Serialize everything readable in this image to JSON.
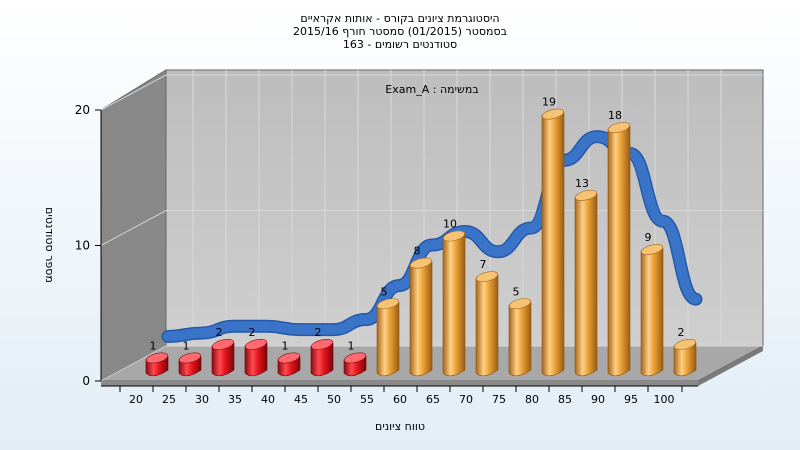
{
  "chart_data": {
    "type": "bar",
    "title_lines": [
      "היסטוגרמת ציונים בקורס - אותות אקראיים",
      "בסמסטר  (01/2015)  סמסטר חורף 2015/16",
      "סטודנטים רשומים - 163"
    ],
    "annotation": "Exam_A : במשימה",
    "xlabel": "טווח ציונים",
    "ylabel": "מספר סטודנטים",
    "categories": [
      "20",
      "25",
      "30",
      "35",
      "40",
      "45",
      "50",
      "55",
      "60",
      "65",
      "70",
      "75",
      "80",
      "85",
      "90",
      "95",
      "100"
    ],
    "values": [
      1,
      1,
      2,
      2,
      1,
      2,
      1,
      5,
      8,
      10,
      7,
      5,
      19,
      13,
      18,
      9,
      2
    ],
    "failing_color": "#e3141c",
    "passing_color": "#e9a035",
    "curve_color": "#3a74c9",
    "ylim": [
      0,
      20
    ],
    "yticks": [
      "0",
      "10",
      "20"
    ],
    "grid": true,
    "legend": "none"
  }
}
